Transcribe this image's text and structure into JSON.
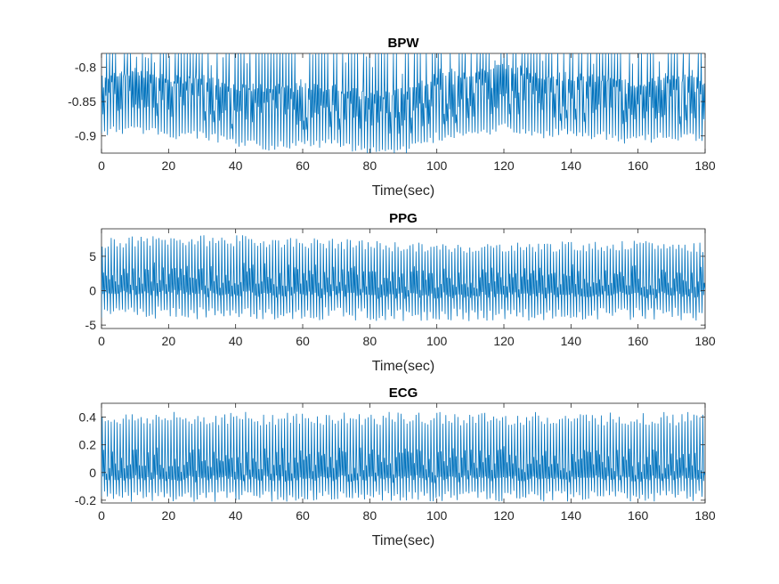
{
  "figure": {
    "background": "#ffffff",
    "line_color": "#0072BD"
  },
  "chart_data": [
    {
      "type": "line",
      "title": "BPW",
      "xlabel": "Time(sec)",
      "ylabel": "",
      "xlim": [
        0,
        180
      ],
      "ylim": [
        -0.925,
        -0.78
      ],
      "xticks": [
        0,
        20,
        40,
        60,
        80,
        100,
        120,
        140,
        160,
        180
      ],
      "yticks": [
        -0.8,
        -0.85,
        -0.9
      ],
      "ytick_labels": [
        "-0.8",
        "-0.85",
        "-0.9"
      ],
      "grid": false,
      "signal": {
        "beats_per_sec": 1.12,
        "baseline": [
          [
            0,
            -0.868
          ],
          [
            10,
            -0.862
          ],
          [
            20,
            -0.872
          ],
          [
            30,
            -0.872
          ],
          [
            40,
            -0.885
          ],
          [
            50,
            -0.888
          ],
          [
            60,
            -0.885
          ],
          [
            70,
            -0.885
          ],
          [
            80,
            -0.895
          ],
          [
            90,
            -0.895
          ],
          [
            100,
            -0.875
          ],
          [
            110,
            -0.872
          ],
          [
            120,
            -0.862
          ],
          [
            130,
            -0.87
          ],
          [
            140,
            -0.87
          ],
          [
            150,
            -0.874
          ],
          [
            160,
            -0.88
          ],
          [
            170,
            -0.872
          ],
          [
            180,
            -0.878
          ]
        ],
        "peak_amplitude": [
          [
            0,
            0.06
          ],
          [
            20,
            0.058
          ],
          [
            40,
            0.062
          ],
          [
            60,
            0.06
          ],
          [
            80,
            0.058
          ],
          [
            100,
            0.07
          ],
          [
            120,
            0.068
          ],
          [
            140,
            0.06
          ],
          [
            160,
            0.06
          ],
          [
            180,
            0.062
          ]
        ],
        "trough_amplitude": 0.028
      }
    },
    {
      "type": "line",
      "title": "PPG",
      "xlabel": "Time(sec)",
      "ylabel": "",
      "xlim": [
        0,
        180
      ],
      "ylim": [
        -5.5,
        9
      ],
      "xticks": [
        0,
        20,
        40,
        60,
        80,
        100,
        120,
        140,
        160,
        180
      ],
      "yticks": [
        5,
        0,
        -5
      ],
      "ytick_labels": [
        "5",
        "0",
        "-5"
      ],
      "grid": false,
      "signal": {
        "beats_per_sec": 1.12,
        "baseline": [
          [
            0,
            0.3
          ],
          [
            20,
            0.4
          ],
          [
            40,
            0.2
          ],
          [
            60,
            0.3
          ],
          [
            80,
            0.1
          ],
          [
            100,
            0.0
          ],
          [
            120,
            0.2
          ],
          [
            140,
            0.1
          ],
          [
            160,
            0.2
          ],
          [
            180,
            0.2
          ]
        ],
        "peak_amplitude": [
          [
            0,
            7.2
          ],
          [
            20,
            7.4
          ],
          [
            40,
            7.6
          ],
          [
            60,
            7.2
          ],
          [
            80,
            7.0
          ],
          [
            100,
            6.6
          ],
          [
            120,
            6.6
          ],
          [
            140,
            6.8
          ],
          [
            160,
            6.8
          ],
          [
            180,
            6.6
          ]
        ],
        "trough_amplitude": 3.8
      }
    },
    {
      "type": "line",
      "title": "ECG",
      "xlabel": "Time(sec)",
      "ylabel": "",
      "xlim": [
        0,
        180
      ],
      "ylim": [
        -0.22,
        0.5
      ],
      "xticks": [
        0,
        20,
        40,
        60,
        80,
        100,
        120,
        140,
        160,
        180
      ],
      "yticks": [
        0.4,
        0.2,
        0,
        -0.2
      ],
      "ytick_labels": [
        "0.4",
        "0.2",
        "0",
        "-0.2"
      ],
      "grid": false,
      "signal": {
        "beats_per_sec": 1.12,
        "baseline": [
          [
            0,
            -0.02
          ],
          [
            180,
            -0.02
          ]
        ],
        "peak_amplitude": [
          [
            0,
            0.44
          ],
          [
            180,
            0.44
          ]
        ],
        "trough_amplitude": 0.16
      }
    }
  ]
}
